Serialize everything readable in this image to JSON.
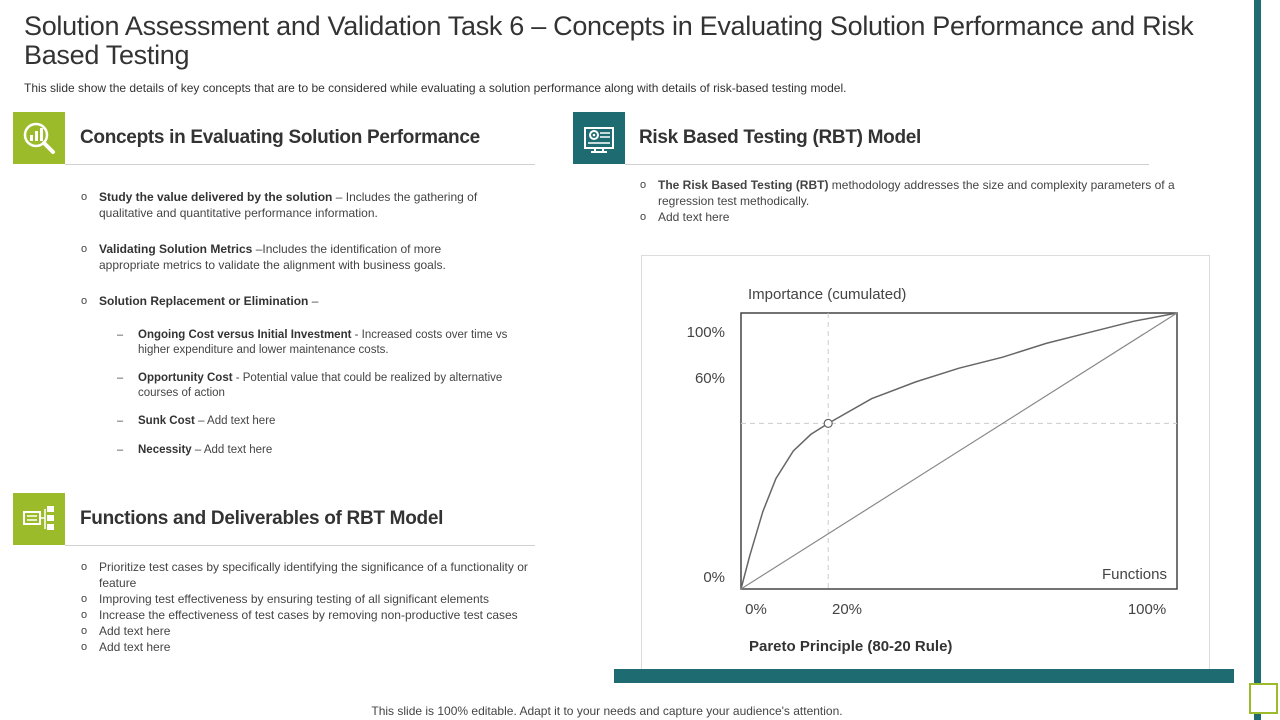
{
  "title": "Solution Assessment and Validation Task 6 – Concepts in Evaluating Solution Performance and Risk Based Testing",
  "subtitle": "This slide show the details of key concepts that are to be considered while evaluating  a solution performance  along with details of risk-based testing model.",
  "colors": {
    "green": "#9cbb2b",
    "teal": "#1f6b72"
  },
  "concepts": {
    "icon": "magnifier-chart-icon",
    "heading": "Concepts in Evaluating Solution Performance",
    "items": [
      {
        "bold": "Study the value delivered by the solution",
        "text": " – Includes the gathering of qualitative and quantitative performance  information."
      },
      {
        "bold": "Validating Solution Metrics",
        "text": " –Includes the identification of more appropriate  metrics to validate  the alignment with business goals."
      },
      {
        "bold": "Solution Replacement or Elimination",
        "text": " –"
      }
    ],
    "sub_items": [
      {
        "bold": "Ongoing Cost versus Initial Investment",
        "text": " - Increased costs over time vs higher expenditure and lower maintenance costs."
      },
      {
        "bold": "Opportunity  Cost",
        "text": " - Potential value that could be realized by alternative courses of action"
      },
      {
        "bold": "Sunk Cost",
        "text": " – Add text here"
      },
      {
        "bold": "Necessity",
        "text": " – Add text here"
      }
    ]
  },
  "functions": {
    "icon": "network-server-icon",
    "heading": "Functions and Deliverables of RBT Model",
    "items": [
      "Prioritize test cases by specifically identifying the significance of a functionality or feature",
      "Improving  test effectiveness  by ensuring testing of all significant elements",
      "Increase the effectiveness  of test cases by removing  non-productive  test cases",
      "Add text here",
      "Add text here"
    ]
  },
  "rbt": {
    "icon": "monitor-gear-icon",
    "heading": "Risk Based Testing (RBT) Model",
    "items": [
      {
        "bold": "The Risk Based Testing (RBT)",
        "text": " methodology addresses the size and complexity parameters of a regression test methodically."
      },
      {
        "bold": "",
        "text": "Add text here"
      }
    ]
  },
  "chart_data": {
    "type": "line",
    "title": "Pareto Principle (80-20 Rule)",
    "ylabel": "Importance (cumulated)",
    "xlabel": "Functions",
    "x_ticks": [
      "0%",
      "20%",
      "100%"
    ],
    "y_ticks": [
      "0%",
      "60%",
      "100%"
    ],
    "xlim": [
      0,
      100
    ],
    "ylim": [
      0,
      100
    ],
    "highlight_point": {
      "x": 20,
      "y": 60
    },
    "series": [
      {
        "values": [
          [
            0,
            0
          ],
          [
            2,
            12
          ],
          [
            5,
            28
          ],
          [
            8,
            40
          ],
          [
            12,
            50
          ],
          [
            16,
            56
          ],
          [
            20,
            60
          ],
          [
            30,
            69
          ],
          [
            40,
            75
          ],
          [
            50,
            80
          ],
          [
            60,
            84
          ],
          [
            70,
            89
          ],
          [
            80,
            93
          ],
          [
            90,
            97
          ],
          [
            100,
            100
          ]
        ]
      },
      {
        "values": [
          [
            0,
            0
          ],
          [
            100,
            100
          ]
        ]
      }
    ]
  },
  "footer": "This slide is 100% editable. Adapt it to your needs and capture your audience's attention."
}
